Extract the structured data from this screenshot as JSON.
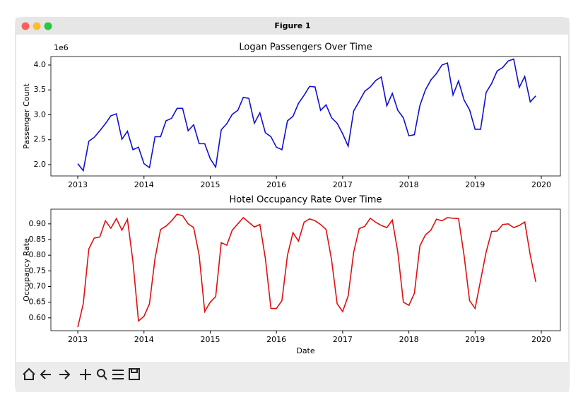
{
  "window": {
    "title": "Figure 1"
  },
  "chart_data": [
    {
      "type": "line",
      "title": "Logan Passengers Over Time",
      "ylabel": "Passenger Count",
      "y_offset_label": "1e6",
      "color": "#1010d0",
      "x": [
        2013,
        2013.083,
        2013.167,
        2013.25,
        2013.333,
        2013.417,
        2013.5,
        2013.583,
        2013.667,
        2013.75,
        2013.833,
        2013.917,
        2014,
        2014.083,
        2014.167,
        2014.25,
        2014.333,
        2014.417,
        2014.5,
        2014.583,
        2014.667,
        2014.75,
        2014.833,
        2014.917,
        2015,
        2015.083,
        2015.167,
        2015.25,
        2015.333,
        2015.417,
        2015.5,
        2015.583,
        2015.667,
        2015.75,
        2015.833,
        2015.917,
        2016,
        2016.083,
        2016.167,
        2016.25,
        2016.333,
        2016.417,
        2016.5,
        2016.583,
        2016.667,
        2016.75,
        2016.833,
        2016.917,
        2017,
        2017.083,
        2017.167,
        2017.25,
        2017.333,
        2017.417,
        2017.5,
        2017.583,
        2017.667,
        2017.75,
        2017.833,
        2017.917,
        2018,
        2018.083,
        2018.167,
        2018.25,
        2018.333,
        2018.417,
        2018.5,
        2018.583,
        2018.667,
        2018.75,
        2018.833,
        2018.917,
        2019,
        2019.083,
        2019.167,
        2019.25,
        2019.333,
        2019.417,
        2019.5,
        2019.583,
        2019.667,
        2019.75,
        2019.833,
        2019.917
      ],
      "values": [
        2.02,
        1.88,
        2.47,
        2.55,
        2.68,
        2.82,
        2.98,
        3.02,
        2.51,
        2.67,
        2.3,
        2.35,
        2.02,
        1.94,
        2.56,
        2.56,
        2.88,
        2.93,
        3.13,
        3.13,
        2.68,
        2.8,
        2.42,
        2.42,
        2.12,
        1.95,
        2.7,
        2.82,
        3.01,
        3.09,
        3.35,
        3.33,
        2.83,
        3.04,
        2.64,
        2.56,
        2.35,
        2.3,
        2.88,
        2.97,
        3.23,
        3.39,
        3.57,
        3.56,
        3.09,
        3.2,
        2.94,
        2.83,
        2.62,
        2.37,
        3.08,
        3.27,
        3.47,
        3.56,
        3.69,
        3.76,
        3.18,
        3.43,
        3.09,
        2.94,
        2.58,
        2.6,
        3.19,
        3.5,
        3.7,
        3.83,
        4.0,
        4.04,
        3.4,
        3.68,
        3.3,
        3.1,
        2.71,
        2.71,
        3.45,
        3.63,
        3.88,
        3.95,
        4.08,
        4.12,
        3.55,
        3.77,
        3.26,
        3.38
      ],
      "xlim": [
        2012.594,
        2020.288
      ],
      "xticks": [
        2013,
        2014,
        2015,
        2016,
        2017,
        2018,
        2019,
        2020
      ],
      "ylim": [
        1.773,
        4.17
      ],
      "yticks": [
        {
          "value": 2,
          "label": "2.0"
        },
        {
          "value": 2.5,
          "label": "2.5"
        },
        {
          "value": 3,
          "label": "3.0"
        },
        {
          "value": 3.5,
          "label": "3.5"
        },
        {
          "value": 4,
          "label": "4.0"
        }
      ]
    },
    {
      "type": "line",
      "title": "Hotel Occupancy Rate Over Time",
      "ylabel": "Occupancy Rate",
      "xlabel": "Date",
      "color": "#e01010",
      "x": [
        2013,
        2013.083,
        2013.167,
        2013.25,
        2013.333,
        2013.417,
        2013.5,
        2013.583,
        2013.667,
        2013.75,
        2013.833,
        2013.917,
        2014,
        2014.083,
        2014.167,
        2014.25,
        2014.333,
        2014.417,
        2014.5,
        2014.583,
        2014.667,
        2014.75,
        2014.833,
        2014.917,
        2015,
        2015.083,
        2015.167,
        2015.25,
        2015.333,
        2015.417,
        2015.5,
        2015.583,
        2015.667,
        2015.75,
        2015.833,
        2015.917,
        2016,
        2016.083,
        2016.167,
        2016.25,
        2016.333,
        2016.417,
        2016.5,
        2016.583,
        2016.667,
        2016.75,
        2016.833,
        2016.917,
        2017,
        2017.083,
        2017.167,
        2017.25,
        2017.333,
        2017.417,
        2017.5,
        2017.583,
        2017.667,
        2017.75,
        2017.833,
        2017.917,
        2018,
        2018.083,
        2018.167,
        2018.25,
        2018.333,
        2018.417,
        2018.5,
        2018.583,
        2018.667,
        2018.75,
        2018.833,
        2018.917,
        2019,
        2019.083,
        2019.167,
        2019.25,
        2019.333,
        2019.417,
        2019.5,
        2019.583,
        2019.667,
        2019.75,
        2019.833,
        2019.917
      ],
      "values": [
        0.57,
        0.645,
        0.82,
        0.855,
        0.858,
        0.91,
        0.886,
        0.917,
        0.88,
        0.915,
        0.78,
        0.59,
        0.605,
        0.645,
        0.79,
        0.882,
        0.893,
        0.91,
        0.931,
        0.926,
        0.9,
        0.888,
        0.8,
        0.62,
        0.65,
        0.668,
        0.84,
        0.832,
        0.88,
        0.9,
        0.92,
        0.905,
        0.89,
        0.898,
        0.79,
        0.63,
        0.63,
        0.655,
        0.8,
        0.872,
        0.845,
        0.905,
        0.916,
        0.91,
        0.898,
        0.882,
        0.785,
        0.645,
        0.62,
        0.67,
        0.81,
        0.885,
        0.892,
        0.918,
        0.905,
        0.895,
        0.888,
        0.912,
        0.81,
        0.65,
        0.64,
        0.678,
        0.83,
        0.865,
        0.88,
        0.915,
        0.91,
        0.92,
        0.918,
        0.917,
        0.8,
        0.655,
        0.63,
        0.72,
        0.81,
        0.876,
        0.877,
        0.898,
        0.9,
        0.888,
        0.895,
        0.906,
        0.8,
        0.715
      ],
      "xlim": [
        2012.594,
        2020.288
      ],
      "xticks": [
        2013,
        2014,
        2015,
        2016,
        2017,
        2018,
        2019,
        2020
      ],
      "ylim": [
        0.559,
        0.947
      ],
      "yticks": [
        {
          "value": 0.6,
          "label": "0.60"
        },
        {
          "value": 0.65,
          "label": "0.65"
        },
        {
          "value": 0.7,
          "label": "0.70"
        },
        {
          "value": 0.75,
          "label": "0.75"
        },
        {
          "value": 0.8,
          "label": "0.80"
        },
        {
          "value": 0.85,
          "label": "0.85"
        },
        {
          "value": 0.9,
          "label": "0.90"
        }
      ]
    }
  ]
}
